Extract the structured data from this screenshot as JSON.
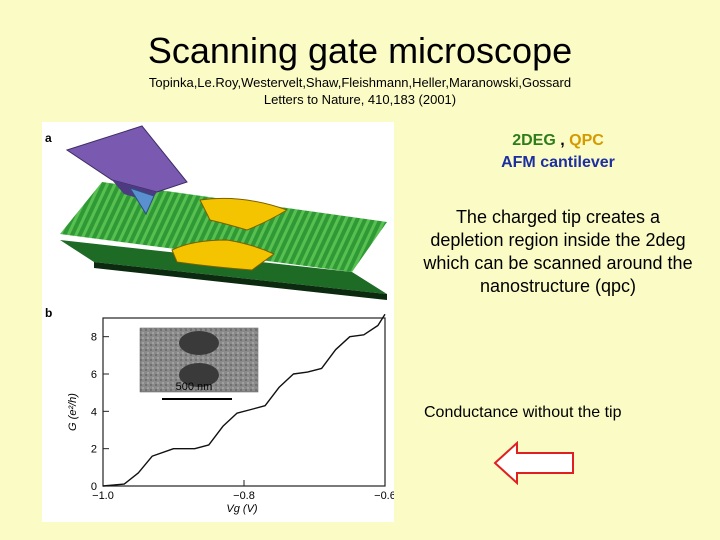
{
  "slide": {
    "title": "Scanning gate microscope",
    "citation_line1": "Topinka,Le.Roy,Westervelt,Shaw,Fleishmann,Heller,Maranowski,Gossard",
    "citation_line2": "Letters to Nature, 410,183 (2001)"
  },
  "figure": {
    "panel_a_label": "a",
    "panel_b_label": "b",
    "inset_scale_label": "500 nm",
    "y_axis_label": "G (e²/h)",
    "x_axis_label": "Vg (V)"
  },
  "legend": {
    "item1": "2DEG",
    "separator": " , ",
    "item2": "QPC",
    "item3": "AFM cantilever"
  },
  "description": "The charged tip creates a depletion region inside the 2deg which can be scanned around the nanostructure (qpc)",
  "conductance_note": "Conductance without the tip",
  "colors": {
    "background": "#fbfbc6",
    "twodeg": "#2e7d1a",
    "qpc": "#d49a00",
    "afm": "#1c2fa0",
    "arrow": "#e02020"
  },
  "chart_data": {
    "type": "line",
    "x": [
      -1.0,
      -0.97,
      -0.95,
      -0.93,
      -0.9,
      -0.87,
      -0.85,
      -0.83,
      -0.81,
      -0.79,
      -0.77,
      -0.75,
      -0.73,
      -0.71,
      -0.69,
      -0.67,
      -0.65,
      -0.63,
      -0.61,
      -0.6
    ],
    "y": [
      0.0,
      0.1,
      0.7,
      1.6,
      2.0,
      2.0,
      2.2,
      3.2,
      3.9,
      4.1,
      4.3,
      5.3,
      6.0,
      6.1,
      6.3,
      7.3,
      8.0,
      8.1,
      8.6,
      9.2
    ],
    "xlabel": "Vg (V)",
    "ylabel": "G (e²/h)",
    "xlim": [
      -1.0,
      -0.6
    ],
    "ylim": [
      0,
      9
    ],
    "x_ticks": [
      -1.0,
      -0.8,
      -0.6
    ],
    "y_ticks": [
      0,
      2,
      4,
      6,
      8
    ]
  }
}
